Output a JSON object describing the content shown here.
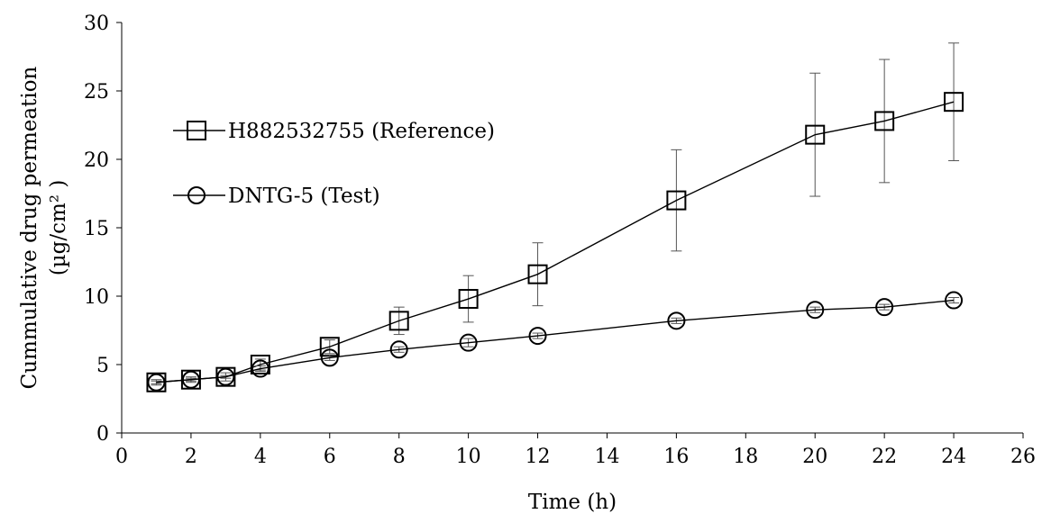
{
  "chart_data": {
    "type": "line",
    "title": "",
    "xlabel": "Time (h)",
    "ylabel_line1": "Cummulative drug permeation",
    "ylabel_line2": "(µg/cm² )",
    "xlim": [
      0,
      26
    ],
    "ylim": [
      0,
      30
    ],
    "xticks": [
      0,
      2,
      4,
      6,
      8,
      10,
      12,
      14,
      16,
      18,
      20,
      22,
      24,
      26
    ],
    "yticks": [
      0,
      5,
      10,
      15,
      20,
      25,
      30
    ],
    "grid": false,
    "legend_position": "upper-left",
    "x": [
      1,
      2,
      3,
      4,
      6,
      8,
      10,
      12,
      16,
      20,
      22,
      24
    ],
    "series": [
      {
        "name": "H882532755 (Reference)",
        "marker": "square",
        "values": [
          3.7,
          3.9,
          4.1,
          5.0,
          6.3,
          8.2,
          9.8,
          11.6,
          17.0,
          21.8,
          22.8,
          24.2
        ],
        "errors": [
          0.2,
          0.2,
          0.3,
          0.4,
          0.5,
          1.0,
          1.7,
          2.3,
          3.7,
          4.5,
          4.5,
          4.3
        ]
      },
      {
        "name": "DNTG-5 (Test)",
        "marker": "circle",
        "values": [
          3.7,
          3.9,
          4.1,
          4.7,
          5.5,
          6.1,
          6.6,
          7.1,
          8.2,
          9.0,
          9.2,
          9.7
        ],
        "errors": [
          0.1,
          0.1,
          0.1,
          0.2,
          0.2,
          0.2,
          0.3,
          0.2,
          0.2,
          0.2,
          0.2,
          0.2
        ]
      }
    ]
  },
  "legend_position_detail": "upper-left"
}
